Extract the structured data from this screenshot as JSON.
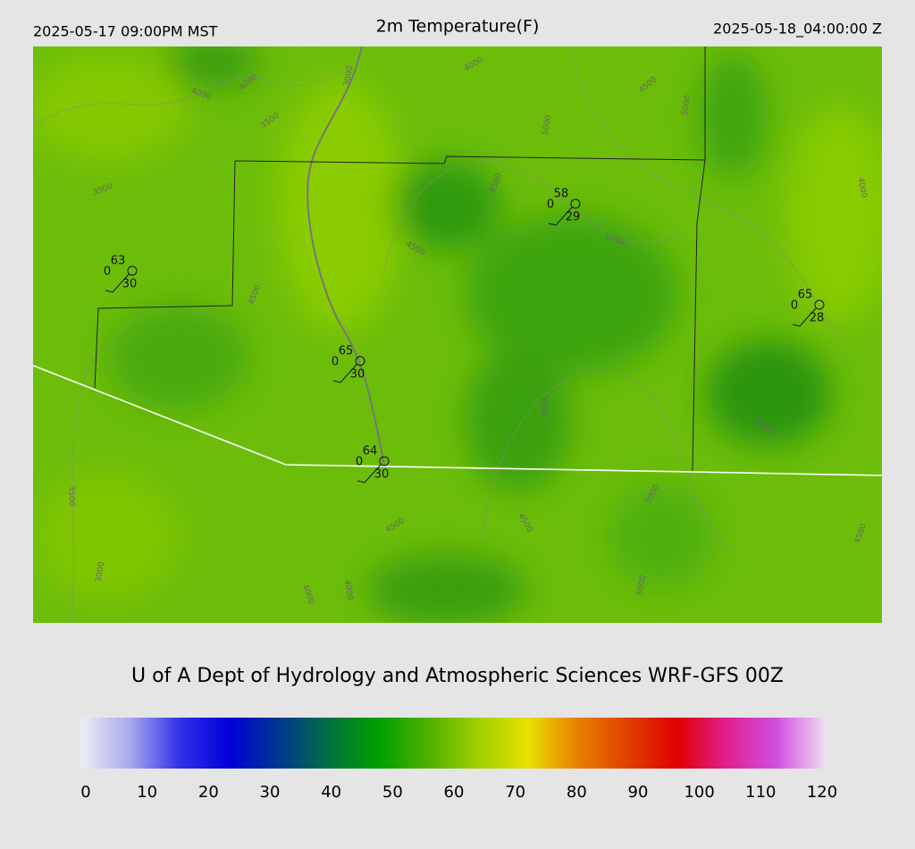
{
  "header": {
    "valid_local": "2025-05-17 09:00PM MST",
    "title": "2m Temperature(F)",
    "valid_utc": "2025-05-18_04:00:00 Z"
  },
  "credit": "U of A Dept of Hydrology and Atmospheric Sciences WRF-GFS 00Z",
  "stations": [
    {
      "temp": 63,
      "left": 0,
      "bottom": 30
    },
    {
      "temp": 58,
      "left": 0,
      "bottom": 29
    },
    {
      "temp": 65,
      "left": 0,
      "bottom": 28
    },
    {
      "temp": 65,
      "left": 0,
      "bottom": 30
    },
    {
      "temp": 64,
      "left": 0,
      "bottom": 30
    }
  ],
  "contour_labels": [
    4000,
    4000,
    3500,
    3000,
    3500,
    4000,
    4500,
    5000,
    5000,
    4500,
    4500,
    5000,
    4000,
    3500,
    4500,
    4500,
    3000,
    4000,
    4000,
    4500,
    5000,
    4500,
    4500,
    5000,
    4500
  ],
  "colorbar": {
    "lim": [
      0,
      120
    ],
    "ticks": [
      0,
      10,
      20,
      30,
      40,
      50,
      60,
      70,
      80,
      90,
      100,
      110,
      120
    ],
    "colors": [
      "#eeeef6",
      "#a8a8ee",
      "#3030ea",
      "#0000d8",
      "#003890",
      "#007040",
      "#00a000",
      "#50b000",
      "#a0d000",
      "#e8e000",
      "#e88000",
      "#e04000",
      "#e00000",
      "#e02090",
      "#d050e0",
      "#f0e0f0"
    ]
  }
}
